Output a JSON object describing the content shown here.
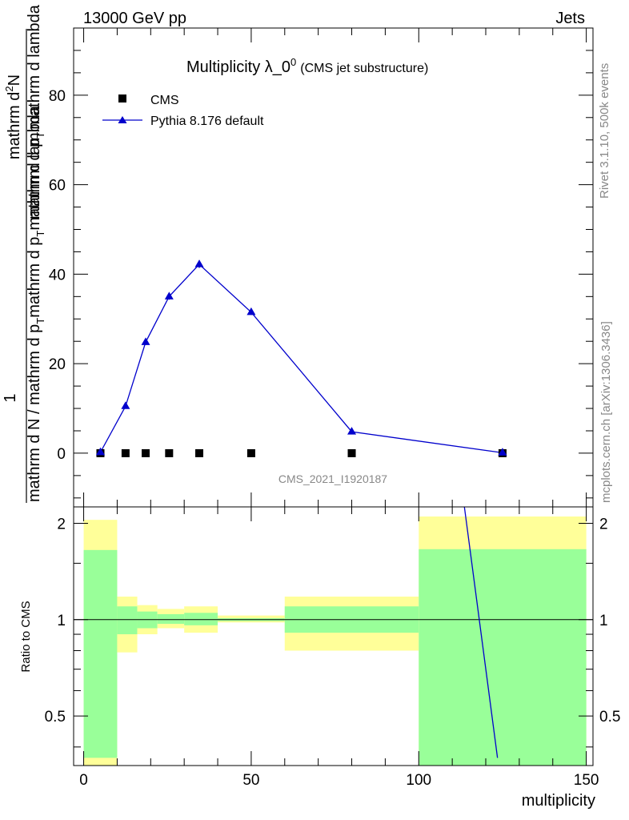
{
  "header": {
    "left": "13000 GeV pp",
    "right": "Jets"
  },
  "side": {
    "rivet": "Rivet 3.1.10,  500k events",
    "mcplots": "mcplots.cern.ch [arXiv:1306.3436]"
  },
  "colors": {
    "mc": "#0000cc",
    "data": "#000000",
    "band_inner": "#99ff99",
    "band_outer": "#ffff99",
    "watermark": "#888888"
  },
  "chart_data": [
    {
      "type": "scatter",
      "title": "Multiplicity λ_0",
      "title_sup": "0",
      "subtitle": "(CMS jet substructure)",
      "ylabel_numerator": "1",
      "ylabel": "mathrm d N / mathrm d p_T mathrm d p_T mathrm d lambda  · mathrm d²N",
      "ylabel_parts": {
        "numerator_a": "mathrm d",
        "numerator_sup": "2",
        "numerator_b": "N",
        "denominator_a": "mathrm d p",
        "denominator_sub": "T",
        "denominator_b": "mathrm d lambda",
        "lower_a": "mathrm d N / mathrm d p",
        "lower_sub": "T",
        "lower_b": "mathrm d p",
        "lower_sub2": "T",
        "lower_c": "mathrm d lambda"
      },
      "watermark": "CMS_2021_I1920187",
      "xlim": [
        -3,
        152
      ],
      "ylim": [
        -12,
        95
      ],
      "yticks": [
        0,
        20,
        40,
        60,
        80
      ],
      "legend_placement": "top-left",
      "series": [
        {
          "name": "CMS",
          "marker": "square",
          "x": [
            5,
            12.5,
            18.5,
            25.5,
            34.5,
            50,
            80,
            125
          ],
          "y": [
            0,
            0,
            0,
            0,
            0,
            0,
            0,
            0
          ]
        },
        {
          "name": "Pythia 8.176 default",
          "marker": "triangle",
          "line": true,
          "x": [
            5,
            12.5,
            18.5,
            25.5,
            34.5,
            50,
            80,
            125
          ],
          "y": [
            0.2,
            10.5,
            24.8,
            35.0,
            42.2,
            31.5,
            4.8,
            0.1
          ],
          "yerr": [
            0.1,
            0.4,
            0.6,
            0.7,
            0.8,
            0.6,
            0.2,
            0.05
          ]
        }
      ]
    },
    {
      "type": "line",
      "ylabel": "Ratio to CMS",
      "xlabel": "multiplicity",
      "xlim": [
        -3,
        152
      ],
      "xticks": [
        0,
        50,
        100,
        150
      ],
      "ylim": [
        0.35,
        2.25
      ],
      "yscale": "log",
      "yticks": [
        0.5,
        1,
        2
      ],
      "ytick_labels": [
        "0.5",
        "1",
        "2"
      ],
      "xtick_labels": [
        "0",
        "50",
        "100",
        "150"
      ],
      "reference_line": 1,
      "bands": [
        {
          "x0": 0,
          "x1": 10,
          "inner": [
            0.37,
            1.65
          ],
          "outer": [
            0.35,
            2.05
          ]
        },
        {
          "x0": 10,
          "x1": 16,
          "inner": [
            0.9,
            1.1
          ],
          "outer": [
            0.79,
            1.18
          ]
        },
        {
          "x0": 16,
          "x1": 22,
          "inner": [
            0.94,
            1.06
          ],
          "outer": [
            0.9,
            1.11
          ]
        },
        {
          "x0": 22,
          "x1": 30,
          "inner": [
            0.97,
            1.04
          ],
          "outer": [
            0.94,
            1.08
          ]
        },
        {
          "x0": 30,
          "x1": 40,
          "inner": [
            0.96,
            1.05
          ],
          "outer": [
            0.91,
            1.1
          ]
        },
        {
          "x0": 40,
          "x1": 60,
          "inner": [
            0.99,
            1.01
          ],
          "outer": [
            0.98,
            1.03
          ]
        },
        {
          "x0": 60,
          "x1": 100,
          "inner": [
            0.91,
            1.1
          ],
          "outer": [
            0.8,
            1.18
          ]
        },
        {
          "x0": 100,
          "x1": 150,
          "inner": [
            0.35,
            1.66
          ],
          "outer": [
            0.35,
            2.1
          ]
        }
      ],
      "series": [
        {
          "name": "Pythia 8.176 default",
          "x": [
            113.5,
            123.5
          ],
          "y": [
            2.3,
            0.37
          ]
        }
      ]
    }
  ]
}
